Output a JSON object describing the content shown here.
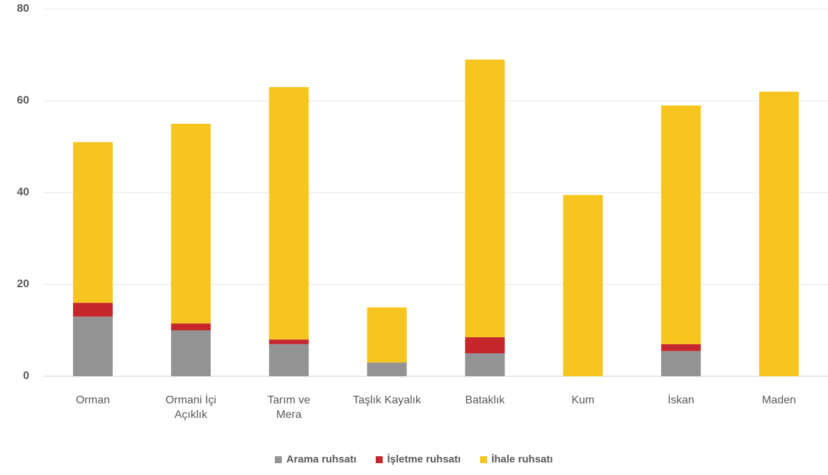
{
  "chart_data": {
    "type": "stacked_bar",
    "categories": [
      "Orman",
      "Ormani İçi\nAçıklık",
      "Tarım ve\nMera",
      "Taşlık Kayalık",
      "Bataklık",
      "Kum",
      "İskan",
      "Maden"
    ],
    "series": [
      {
        "name": "Arama ruhsatı",
        "color": "#939393",
        "values": [
          13,
          10,
          7,
          3,
          5,
          0,
          5.5,
          0
        ]
      },
      {
        "name": "İşletme ruhsatı",
        "color": "#c5262b",
        "values": [
          3,
          1.5,
          1,
          0,
          3.5,
          0,
          1.5,
          0
        ]
      },
      {
        "name": "İhale ruhsatı",
        "color": "#f7c520",
        "values": [
          35,
          43.5,
          55,
          12,
          60.5,
          39.5,
          52,
          62
        ]
      }
    ],
    "ylim": [
      0,
      80
    ],
    "yticks": [
      0,
      20,
      40,
      60,
      80
    ],
    "grid": true,
    "legend": "bottom"
  }
}
